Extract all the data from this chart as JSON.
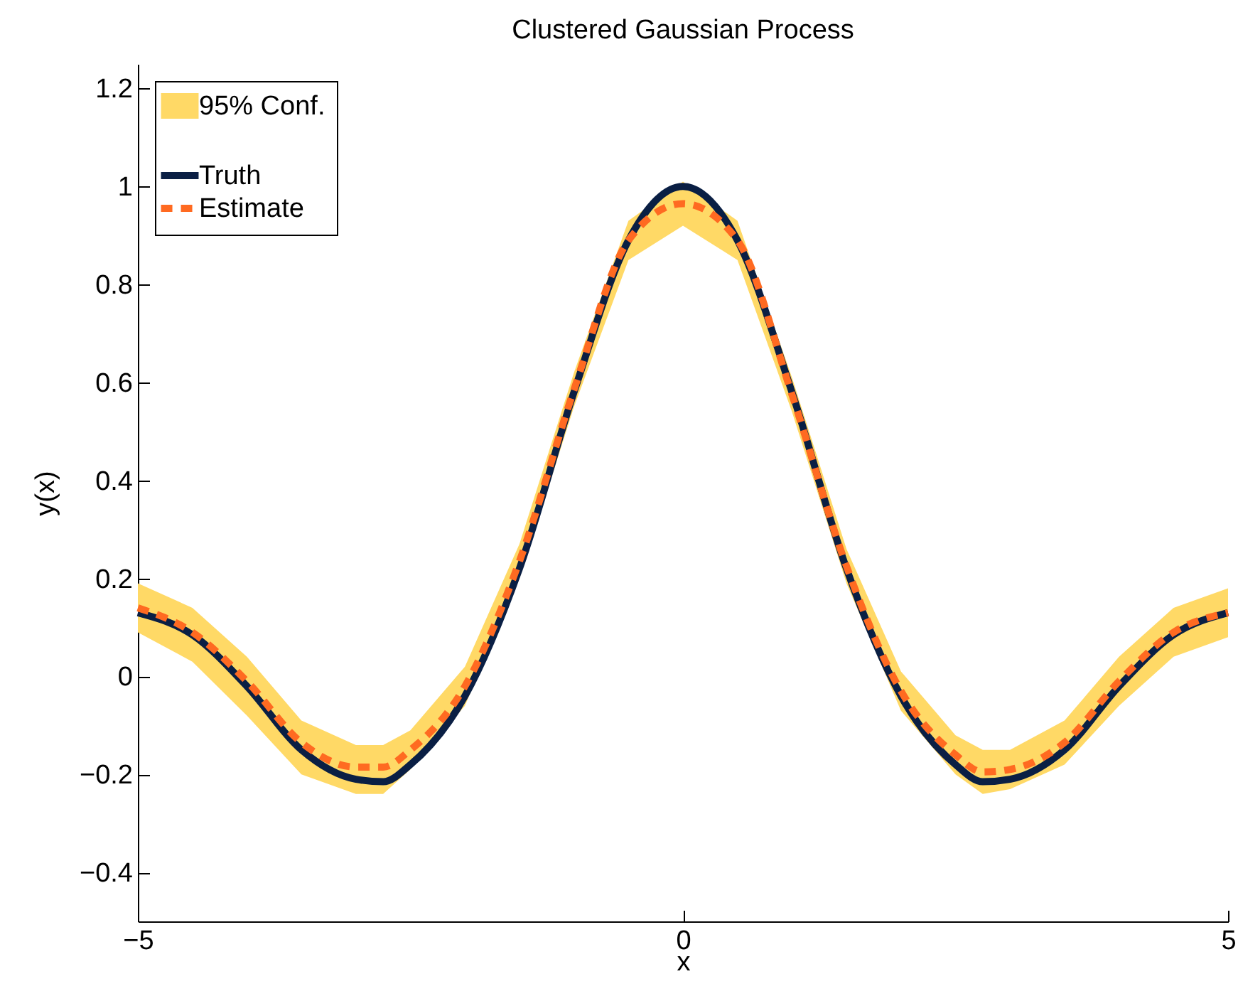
{
  "chart_data": {
    "type": "line",
    "title": "Clustered Gaussian Process",
    "xlabel": "x",
    "ylabel": "y(x)",
    "annotations": [
      "95% Conf."
    ],
    "x": [
      -5,
      -4.5,
      -4,
      -3.5,
      -3,
      -2.75,
      -2.5,
      -2,
      -1.5,
      -1,
      -0.5,
      0,
      0.5,
      1,
      1.5,
      2,
      2.5,
      2.75,
      3,
      3.5,
      4,
      4.5,
      5
    ],
    "series": [
      {
        "name": "Truth",
        "color": "#0a1f44",
        "line_style": "solid",
        "values": [
          0.13,
          0.085,
          -0.02,
          -0.15,
          -0.21,
          -0.215,
          -0.18,
          -0.04,
          0.22,
          0.58,
          0.89,
          1.0,
          0.89,
          0.58,
          0.22,
          -0.04,
          -0.18,
          -0.215,
          -0.21,
          -0.15,
          -0.02,
          0.085,
          0.13
        ]
      },
      {
        "name": "Estimate",
        "color": "#ff6a21",
        "line_style": "dashed",
        "values": [
          0.14,
          0.09,
          -0.01,
          -0.135,
          -0.185,
          -0.185,
          -0.15,
          -0.02,
          0.235,
          0.585,
          0.89,
          0.965,
          0.89,
          0.575,
          0.225,
          -0.03,
          -0.16,
          -0.195,
          -0.19,
          -0.135,
          -0.01,
          0.09,
          0.13
        ],
        "lower": [
          0.09,
          0.03,
          -0.08,
          -0.2,
          -0.24,
          -0.24,
          -0.19,
          -0.06,
          0.2,
          0.55,
          0.85,
          0.92,
          0.85,
          0.54,
          0.19,
          -0.07,
          -0.2,
          -0.24,
          -0.23,
          -0.18,
          -0.06,
          0.04,
          0.08
        ],
        "upper": [
          0.19,
          0.14,
          0.04,
          -0.09,
          -0.14,
          -0.14,
          -0.11,
          0.02,
          0.27,
          0.62,
          0.93,
          1.01,
          0.93,
          0.61,
          0.26,
          0.01,
          -0.12,
          -0.15,
          -0.15,
          -0.09,
          0.04,
          0.14,
          0.18
        ]
      }
    ],
    "xlim": [
      -5,
      5
    ],
    "xticks": [
      {
        "value": -5,
        "label": "−5"
      },
      0,
      5
    ],
    "ylim": [
      -0.5,
      1.25
    ],
    "yticks": [
      {
        "value": -0.4,
        "label": "−0.4"
      },
      {
        "value": -0.2,
        "label": "−0.2"
      },
      0,
      0.2,
      0.4,
      0.6,
      0.8,
      1,
      1.2
    ],
    "grid": false,
    "legend": "top left"
  }
}
